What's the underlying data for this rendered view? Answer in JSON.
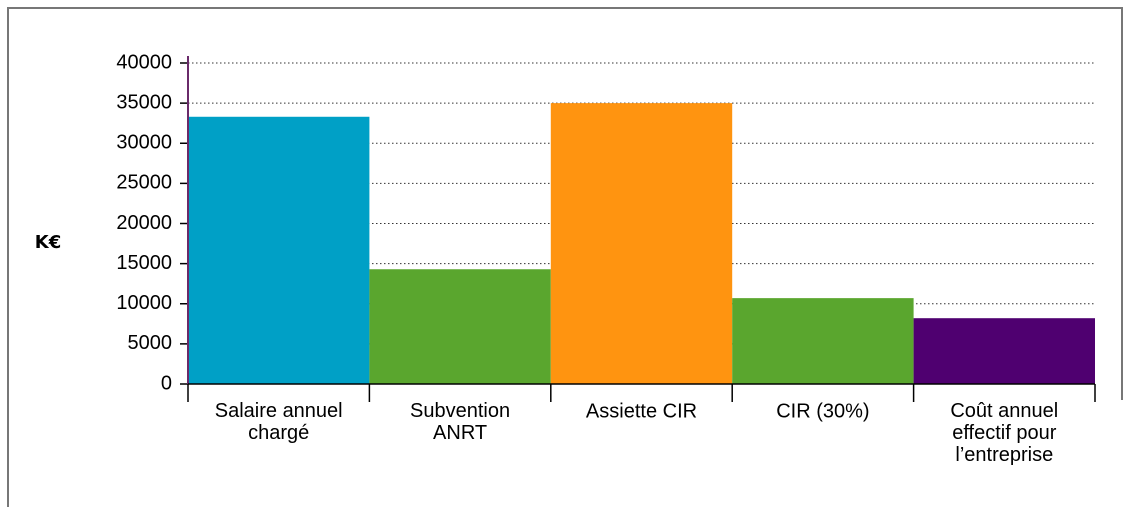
{
  "chart_data": {
    "type": "bar",
    "ylabel": "K€",
    "categories": [
      "Salaire annuel\nchargé",
      "Subvention\nANRT",
      "Assiette CIR",
      "CIR (30%)",
      "Coût annuel\neffectif pour\nl’entreprise"
    ],
    "values": [
      33300,
      14300,
      35000,
      10700,
      8200
    ],
    "colors": [
      "#00a0c6",
      "#5aa62e",
      "#ff9410",
      "#5aa62e",
      "#4f0070"
    ],
    "ylim": [
      0,
      40000
    ],
    "yticks": [
      0,
      5000,
      10000,
      15000,
      20000,
      25000,
      30000,
      35000,
      40000
    ],
    "grid": true
  }
}
